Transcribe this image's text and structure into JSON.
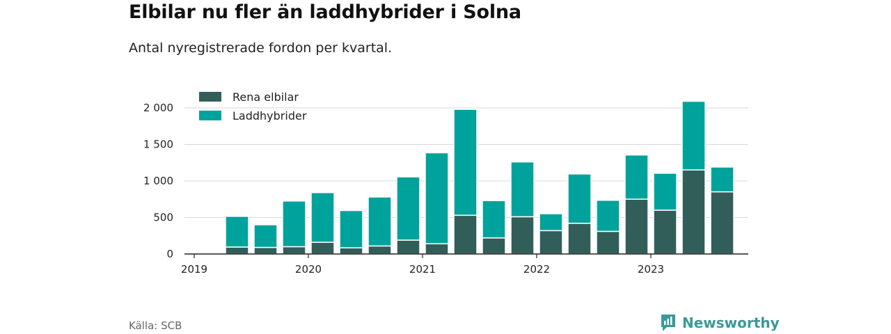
{
  "header": {
    "title": "Elbilar nu fler än laddhybrider i Solna",
    "subtitle": "Antal nyregistrerade fordon per kvartal."
  },
  "footer": {
    "source": "Källa: SCB",
    "brand": "Newsworthy"
  },
  "colors": {
    "electric": "#325e5a",
    "hybrid": "#00a39b",
    "grid": "#d9d9d9",
    "axis": "#222222",
    "brand": "#3a9a96"
  },
  "chart_data": {
    "type": "bar",
    "stacked": true,
    "title": "Elbilar nu fler än laddhybrider i Solna",
    "subtitle": "Antal nyregistrerade fordon per kvartal.",
    "categories": [
      "2019 Q2",
      "2019 Q3",
      "2019 Q4",
      "2020 Q1",
      "2020 Q2",
      "2020 Q3",
      "2020 Q4",
      "2021 Q1",
      "2021 Q2",
      "2021 Q3",
      "2021 Q4",
      "2022 Q1",
      "2022 Q2",
      "2022 Q3",
      "2022 Q4",
      "2023 Q1",
      "2023 Q2",
      "2023 Q3"
    ],
    "series": [
      {
        "name": "Rena elbilar",
        "values": [
          95,
          90,
          100,
          160,
          85,
          110,
          190,
          140,
          530,
          220,
          510,
          320,
          420,
          310,
          750,
          600,
          1150,
          850
        ]
      },
      {
        "name": "Laddhybrider",
        "values": [
          420,
          310,
          625,
          680,
          510,
          670,
          865,
          1245,
          1450,
          510,
          750,
          230,
          675,
          425,
          605,
          505,
          940,
          340
        ]
      }
    ],
    "y_ticks": [
      0,
      500,
      1000,
      1500,
      2000
    ],
    "y_tick_labels": [
      "0",
      "500",
      "1 000",
      "1 500",
      "2 000"
    ],
    "x_ticks": [
      "2019",
      "2020",
      "2021",
      "2022",
      "2023"
    ],
    "ylim": [
      0,
      2100
    ],
    "legend_position": "top-left",
    "grid": true,
    "xlabel": "",
    "ylabel": ""
  }
}
